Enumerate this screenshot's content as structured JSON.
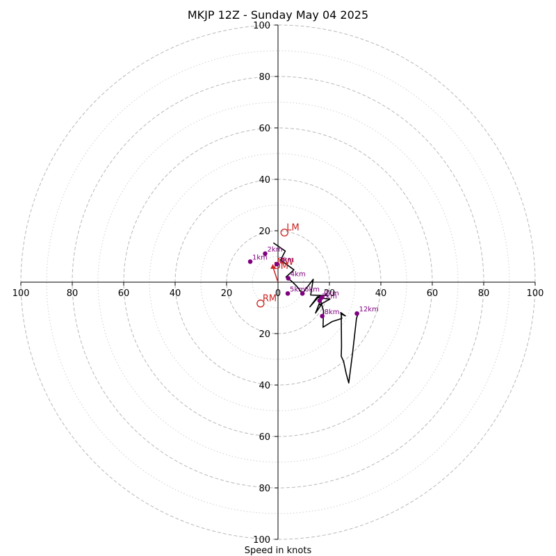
{
  "chart_data": {
    "type": "hodograph",
    "title": "MKJP 12Z - Sunday May 04 2025",
    "xlabel": "Speed in knots",
    "units": "knots",
    "rlim": [
      0,
      100
    ],
    "ring_labels": [
      "20",
      "40",
      "60",
      "80",
      "100"
    ],
    "axis_tick_values": [
      100,
      80,
      60,
      40,
      20,
      0,
      20,
      40,
      60,
      80,
      100
    ],
    "axis_tick_labels": {
      "x": [
        "100",
        "80",
        "60",
        "40",
        "20",
        "0",
        "20",
        "40",
        "60",
        "80",
        "100"
      ],
      "y_top": [
        "100",
        "80",
        "60",
        "40",
        "20"
      ],
      "y_bottom": [
        "20",
        "40",
        "60",
        "80",
        "100"
      ]
    },
    "grid": {
      "major_rings": [
        20,
        40,
        60,
        80,
        100
      ],
      "minor_rings": [
        10,
        30,
        50,
        70,
        90
      ],
      "major_style": "dashed",
      "minor_style": "dotted"
    },
    "colors": {
      "trace": "#000000",
      "markers": "#800080",
      "motion": "#cc2020",
      "grid": "#b8b8b8"
    },
    "hodograph_trace": [
      {
        "u": -1.8,
        "v": 15.3
      },
      {
        "u": 2.8,
        "v": 12.1
      },
      {
        "u": 1.0,
        "v": 8.6
      },
      {
        "u": 6.2,
        "v": 4.8
      },
      {
        "u": 3.1,
        "v": 2.0
      },
      {
        "u": 5.4,
        "v": 0.3
      },
      {
        "u": 7.3,
        "v": -1.6
      },
      {
        "u": 9.5,
        "v": -4.4
      },
      {
        "u": 13.7,
        "v": 1.1
      },
      {
        "u": 12.7,
        "v": -5.0
      },
      {
        "u": 17.9,
        "v": -5.2
      },
      {
        "u": 15.3,
        "v": -5.7
      },
      {
        "u": 12.4,
        "v": -9.6
      },
      {
        "u": 15.5,
        "v": -6.0
      },
      {
        "u": 20.2,
        "v": -6.6
      },
      {
        "u": 16.2,
        "v": -8.8
      },
      {
        "u": 17.3,
        "v": -8.1
      },
      {
        "u": 14.6,
        "v": -12.0
      },
      {
        "u": 16.5,
        "v": -7.1
      },
      {
        "u": 17.7,
        "v": -11.2
      },
      {
        "u": 17.5,
        "v": -17.5
      },
      {
        "u": 21.1,
        "v": -15.3
      },
      {
        "u": 24.8,
        "v": -14.1
      },
      {
        "u": 24.4,
        "v": -11.8
      },
      {
        "u": 26.2,
        "v": -13.1
      },
      {
        "u": 24.6,
        "v": -12.4
      },
      {
        "u": 24.7,
        "v": -25.0
      },
      {
        "u": 24.6,
        "v": -28.8
      },
      {
        "u": 25.5,
        "v": -30.8
      },
      {
        "u": 26.5,
        "v": -35.5
      },
      {
        "u": 27.5,
        "v": -39.2
      },
      {
        "u": 29.0,
        "v": -27.6
      },
      {
        "u": 30.5,
        "v": -14.1
      },
      {
        "u": 31.2,
        "v": -12.2
      }
    ],
    "height_markers": [
      {
        "label": "1km",
        "u": -10.8,
        "v": 8.0
      },
      {
        "label": "2km",
        "u": -5.0,
        "v": 11.1
      },
      {
        "label": "3km",
        "u": -0.5,
        "v": 7.0
      },
      {
        "label": "4km",
        "u": 4.0,
        "v": 1.5
      },
      {
        "label": "5km",
        "u": 3.8,
        "v": -4.4
      },
      {
        "label": "6km",
        "u": 9.5,
        "v": -4.4
      },
      {
        "label": "7km",
        "u": 16.2,
        "v": -7.2
      },
      {
        "label": "8km",
        "u": 17.2,
        "v": -13.2
      },
      {
        "label": "9km",
        "u": 17.0,
        "v": -6.0
      },
      {
        "label": "12km",
        "u": 30.7,
        "v": -12.2
      }
    ],
    "storm_motion": [
      {
        "label": "LM",
        "u": 2.5,
        "v": 19.3
      },
      {
        "label": "RM",
        "u": -6.8,
        "v": -8.3
      },
      {
        "label": "MW",
        "u": -1.2,
        "v": 6.0
      },
      {
        "label": "DM",
        "u": -2.5,
        "v": 4.3
      }
    ],
    "shear_vector": {
      "from": {
        "u": 0.0,
        "v": 0.0
      },
      "to": {
        "u": -2.0,
        "v": 6.0
      }
    }
  }
}
